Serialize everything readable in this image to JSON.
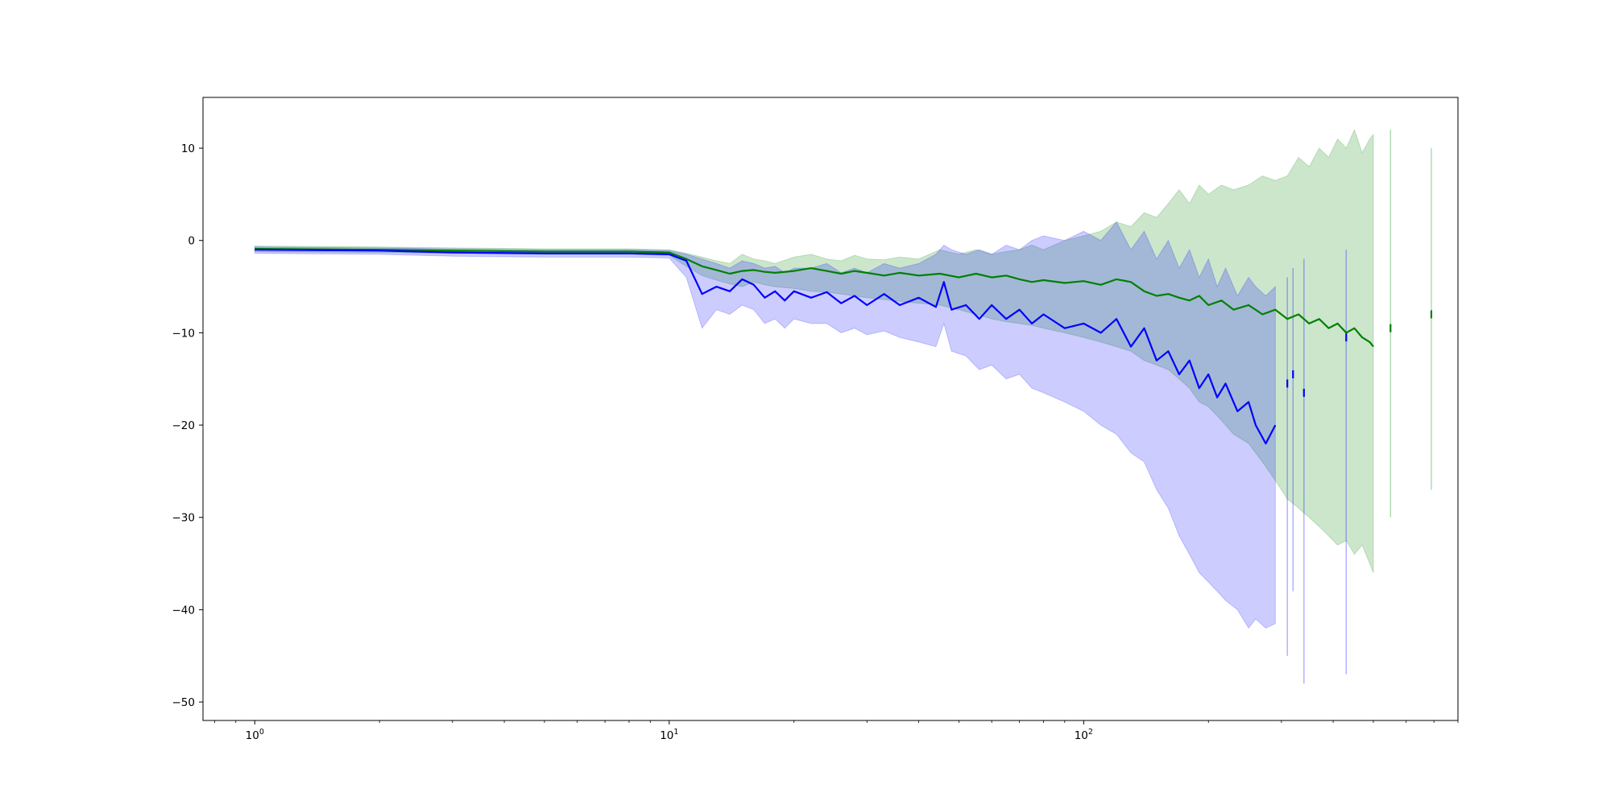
{
  "chart_data": {
    "type": "line",
    "title": "",
    "xlabel": "",
    "ylabel": "",
    "xscale": "log",
    "xlim": [
      0.75,
      800
    ],
    "ylim": [
      -52,
      15.5
    ],
    "x_ticks": [
      {
        "value": 1,
        "base": "10",
        "exp": "0"
      },
      {
        "value": 10,
        "base": "10",
        "exp": "1"
      },
      {
        "value": 100,
        "base": "10",
        "exp": "2"
      }
    ],
    "y_ticks": [
      10,
      0,
      -10,
      -20,
      -30,
      -40,
      -50
    ],
    "y_tick_labels": [
      "10",
      "0",
      "−10",
      "−20",
      "−30",
      "−40",
      "−50"
    ],
    "grid": false,
    "legend": "none",
    "series": [
      {
        "color": "#008000",
        "band_color": "#008000",
        "band_opacity": 0.2,
        "points": [
          [
            1,
            -0.9,
            -0.6,
            -1.2
          ],
          [
            2,
            -1.0,
            -0.7,
            -1.3
          ],
          [
            3,
            -1.1,
            -0.8,
            -1.4
          ],
          [
            5,
            -1.2,
            -0.9,
            -1.5
          ],
          [
            8,
            -1.2,
            -0.9,
            -1.5
          ],
          [
            10,
            -1.3,
            -1.0,
            -1.6
          ],
          [
            11,
            -2.0,
            -1.4,
            -2.8
          ],
          [
            12,
            -2.8,
            -1.8,
            -3.8
          ],
          [
            13,
            -3.2,
            -2.2,
            -4.3
          ],
          [
            14,
            -3.6,
            -2.5,
            -4.7
          ],
          [
            15,
            -3.3,
            -1.5,
            -5.0
          ],
          [
            16,
            -3.2,
            -2.0,
            -4.5
          ],
          [
            17,
            -3.4,
            -2.2,
            -4.8
          ],
          [
            18,
            -3.5,
            -2.5,
            -5.0
          ],
          [
            20,
            -3.3,
            -1.8,
            -5.2
          ],
          [
            22,
            -3.0,
            -1.5,
            -5.5
          ],
          [
            24,
            -3.3,
            -2.0,
            -5.6
          ],
          [
            26,
            -3.6,
            -2.2,
            -5.8
          ],
          [
            28,
            -3.3,
            -1.6,
            -6.0
          ],
          [
            30,
            -3.5,
            -2.0,
            -6.2
          ],
          [
            33,
            -3.8,
            -2.1,
            -6.4
          ],
          [
            36,
            -3.5,
            -1.8,
            -6.6
          ],
          [
            40,
            -3.8,
            -2.0,
            -6.8
          ],
          [
            45,
            -3.6,
            -1.0,
            -7.0
          ],
          [
            50,
            -4.0,
            -1.5,
            -7.5
          ],
          [
            55,
            -3.6,
            -1.0,
            -8.0
          ],
          [
            60,
            -4.0,
            -1.5,
            -8.5
          ],
          [
            65,
            -3.8,
            -1.2,
            -8.8
          ],
          [
            70,
            -4.2,
            -1.0,
            -9.0
          ],
          [
            75,
            -4.5,
            -0.5,
            -9.2
          ],
          [
            80,
            -4.3,
            -1.0,
            -9.5
          ],
          [
            90,
            -4.6,
            0.0,
            -10.0
          ],
          [
            100,
            -4.4,
            0.5,
            -10.5
          ],
          [
            110,
            -4.8,
            1.0,
            -11.0
          ],
          [
            120,
            -4.2,
            2.0,
            -11.5
          ],
          [
            130,
            -4.5,
            1.5,
            -12.0
          ],
          [
            140,
            -5.5,
            3.0,
            -13.0
          ],
          [
            150,
            -6.0,
            2.5,
            -13.5
          ],
          [
            160,
            -5.8,
            4.0,
            -14.0
          ],
          [
            170,
            -6.2,
            5.5,
            -15.0
          ],
          [
            180,
            -6.5,
            4.0,
            -16.0
          ],
          [
            190,
            -6.0,
            6.0,
            -17.5
          ],
          [
            200,
            -7.0,
            5.0,
            -18.0
          ],
          [
            215,
            -6.5,
            6.0,
            -19.5
          ],
          [
            230,
            -7.5,
            5.5,
            -21.0
          ],
          [
            250,
            -7.0,
            6.0,
            -22.0
          ],
          [
            270,
            -8.0,
            7.0,
            -24.0
          ],
          [
            290,
            -7.5,
            6.5,
            -26.0
          ],
          [
            310,
            -8.5,
            7.0,
            -28.0
          ],
          [
            330,
            -8.0,
            9.0,
            -29.0
          ],
          [
            350,
            -9.0,
            8.0,
            -30.0
          ],
          [
            370,
            -8.5,
            10.0,
            -31.0
          ],
          [
            390,
            -9.5,
            9.0,
            -32.0
          ],
          [
            410,
            -9.0,
            11.0,
            -33.0
          ],
          [
            430,
            -10.0,
            10.0,
            -32.5
          ],
          [
            450,
            -9.5,
            12.0,
            -34.0
          ],
          [
            470,
            -10.5,
            9.5,
            -33.0
          ],
          [
            490,
            -11.0,
            11.0,
            -35.0
          ],
          [
            500,
            -11.5,
            11.5,
            -36.0
          ]
        ],
        "isolated": [
          [
            550,
            -9.5,
            12.0,
            -30.0
          ],
          [
            690,
            -8.0,
            10.0,
            -27.0
          ]
        ]
      },
      {
        "color": "#0000ff",
        "band_color": "#0000ff",
        "band_opacity": 0.2,
        "points": [
          [
            1,
            -1.0,
            -0.7,
            -1.4
          ],
          [
            2,
            -1.1,
            -0.8,
            -1.5
          ],
          [
            3,
            -1.3,
            -0.9,
            -1.7
          ],
          [
            5,
            -1.4,
            -1.0,
            -1.8
          ],
          [
            8,
            -1.4,
            -1.0,
            -1.8
          ],
          [
            10,
            -1.5,
            -1.1,
            -1.9
          ],
          [
            11,
            -2.2,
            -1.5,
            -4.0
          ],
          [
            12,
            -5.8,
            -2.0,
            -9.5
          ],
          [
            13,
            -5.0,
            -2.5,
            -7.5
          ],
          [
            14,
            -5.5,
            -3.0,
            -8.0
          ],
          [
            15,
            -4.2,
            -2.2,
            -7.0
          ],
          [
            16,
            -4.8,
            -2.5,
            -7.5
          ],
          [
            17,
            -6.2,
            -3.0,
            -9.0
          ],
          [
            18,
            -5.5,
            -2.8,
            -8.5
          ],
          [
            19,
            -6.5,
            -3.5,
            -9.5
          ],
          [
            20,
            -5.5,
            -3.0,
            -8.5
          ],
          [
            22,
            -6.2,
            -3.0,
            -9.0
          ],
          [
            24,
            -5.6,
            -2.5,
            -9.0
          ],
          [
            26,
            -6.8,
            -3.5,
            -10.0
          ],
          [
            28,
            -6.0,
            -3.0,
            -9.5
          ],
          [
            30,
            -7.0,
            -3.5,
            -10.2
          ],
          [
            33,
            -5.8,
            -2.5,
            -9.8
          ],
          [
            36,
            -7.0,
            -3.0,
            -10.5
          ],
          [
            40,
            -6.2,
            -2.5,
            -11.0
          ],
          [
            44,
            -7.2,
            -1.5,
            -11.5
          ],
          [
            46,
            -4.5,
            -0.5,
            -9.0
          ],
          [
            48,
            -7.5,
            -1.0,
            -12.0
          ],
          [
            52,
            -7.0,
            -1.5,
            -12.5
          ],
          [
            56,
            -8.5,
            -1.0,
            -14.0
          ],
          [
            60,
            -7.0,
            -1.5,
            -13.5
          ],
          [
            65,
            -8.5,
            -0.5,
            -15.0
          ],
          [
            70,
            -7.5,
            -1.0,
            -14.5
          ],
          [
            75,
            -9.0,
            0.0,
            -16.0
          ],
          [
            80,
            -8.0,
            0.5,
            -16.5
          ],
          [
            90,
            -9.5,
            0.0,
            -17.5
          ],
          [
            100,
            -9.0,
            1.0,
            -18.5
          ],
          [
            110,
            -10.0,
            0.0,
            -20.0
          ],
          [
            120,
            -8.5,
            2.0,
            -21.0
          ],
          [
            130,
            -11.5,
            -1.0,
            -23.0
          ],
          [
            140,
            -9.5,
            1.0,
            -24.0
          ],
          [
            150,
            -13.0,
            -2.0,
            -27.0
          ],
          [
            160,
            -12.0,
            0.0,
            -29.0
          ],
          [
            170,
            -14.5,
            -3.0,
            -32.0
          ],
          [
            180,
            -13.0,
            -1.0,
            -34.0
          ],
          [
            190,
            -16.0,
            -4.0,
            -36.0
          ],
          [
            200,
            -14.5,
            -2.0,
            -37.0
          ],
          [
            210,
            -17.0,
            -5.0,
            -38.0
          ],
          [
            220,
            -15.5,
            -3.0,
            -39.0
          ],
          [
            235,
            -18.5,
            -6.0,
            -40.0
          ],
          [
            250,
            -17.5,
            -4.0,
            -42.0
          ],
          [
            260,
            -20.0,
            -5.0,
            -41.0
          ],
          [
            275,
            -22.0,
            -6.0,
            -42.0
          ],
          [
            290,
            -20.0,
            -5.0,
            -41.5
          ]
        ],
        "isolated": [
          [
            310,
            -15.5,
            -4.0,
            -45.0
          ],
          [
            320,
            -14.5,
            -3.0,
            -38.0
          ],
          [
            340,
            -16.5,
            -2.0,
            -48.0
          ],
          [
            430,
            -10.5,
            -1.0,
            -47.0
          ]
        ]
      }
    ]
  }
}
